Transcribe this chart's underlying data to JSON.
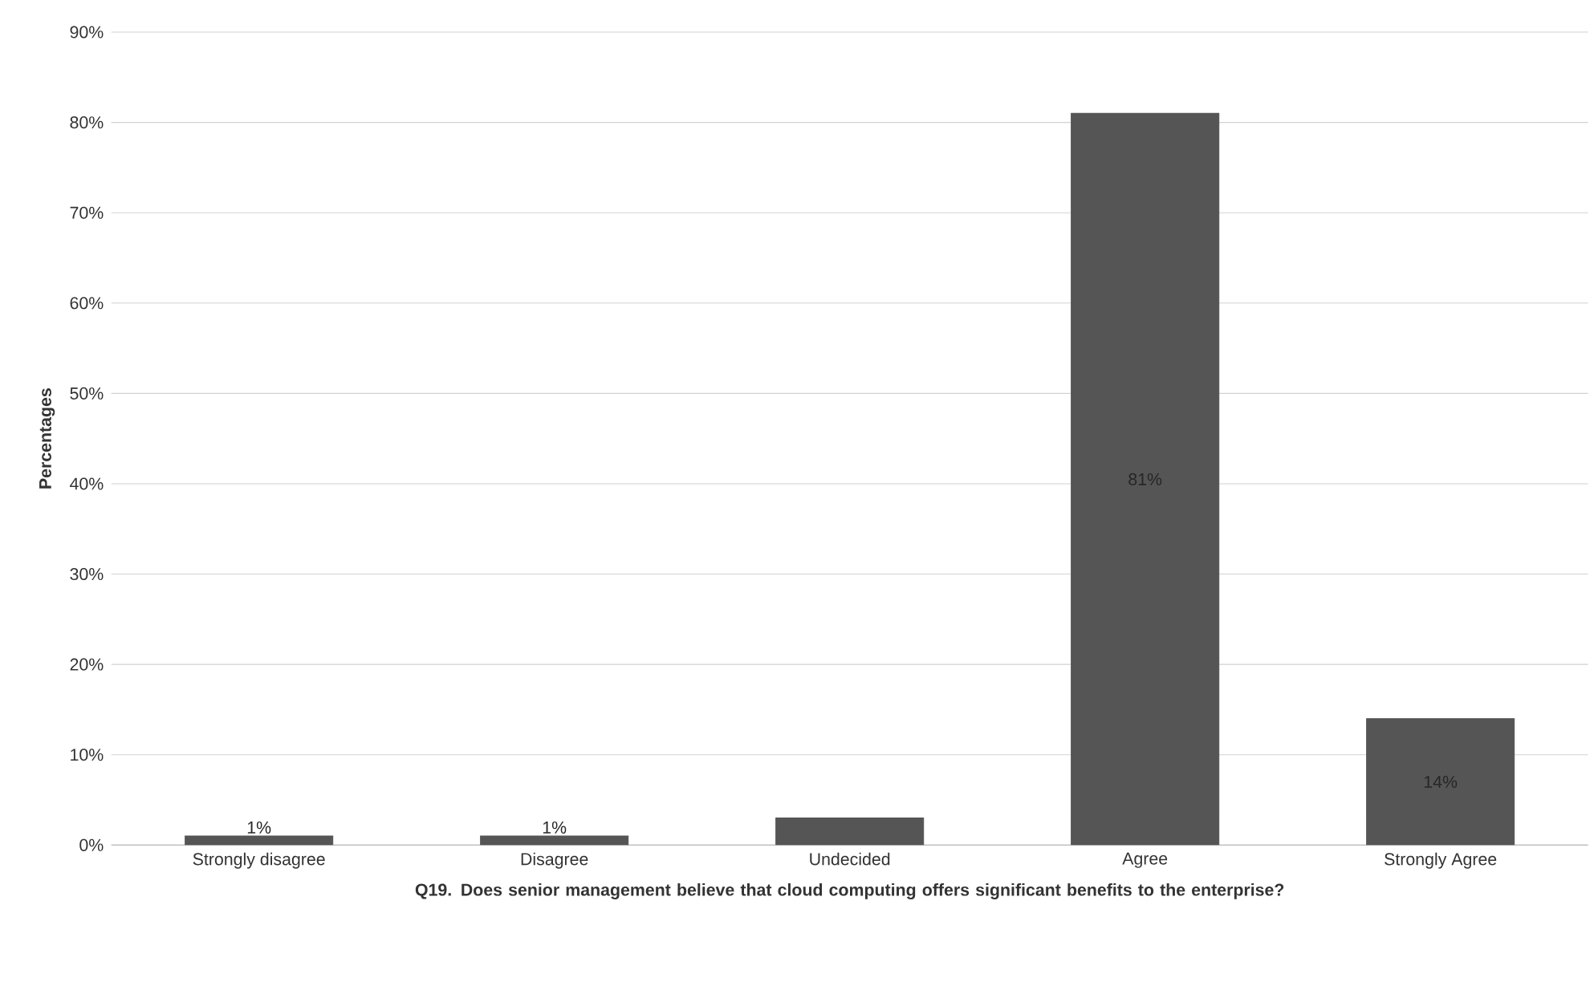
{
  "chart_data": {
    "type": "bar",
    "xlabel": "Q19. Does senior management believe that cloud computing offers significant  benefits to the enterprise?",
    "ylabel": "Percentages",
    "categories": [
      "Strongly disagree",
      "Disagree",
      "Undecided",
      "Agree",
      "Strongly Agree"
    ],
    "values": [
      1,
      1,
      3,
      81,
      14
    ],
    "value_labels": [
      "1%",
      "1%",
      null,
      "81%",
      "14%"
    ],
    "color": "#555555",
    "ylim": [
      0,
      90
    ],
    "yticks": [
      {
        "value": 0,
        "label": "0%"
      },
      {
        "value": 10,
        "label": "10%"
      },
      {
        "value": 20,
        "label": "20%"
      },
      {
        "value": 30,
        "label": "30%"
      },
      {
        "value": 40,
        "label": "40%"
      },
      {
        "value": 50,
        "label": "50%"
      },
      {
        "value": 60,
        "label": "60%"
      },
      {
        "value": 70,
        "label": "70%"
      },
      {
        "value": 80,
        "label": "80%"
      },
      {
        "value": 90,
        "label": "90%"
      }
    ],
    "grid": "y"
  }
}
